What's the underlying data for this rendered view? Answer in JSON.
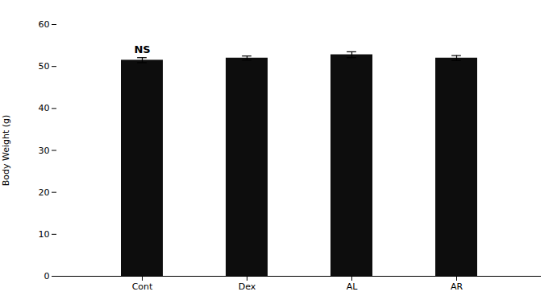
{
  "chart_data": {
    "type": "bar",
    "categories": [
      "Cont",
      "Dex",
      "AL",
      "AR"
    ],
    "values": [
      51.5,
      52.0,
      52.8,
      52.0
    ],
    "errors": [
      0.6,
      0.5,
      0.7,
      0.6
    ],
    "color": "#0d0d0d",
    "ylabel": "Body Weight (g)",
    "ylim": [
      0,
      60
    ],
    "yticks": [
      0,
      10,
      20,
      30,
      40,
      50,
      60
    ],
    "annotations": [
      {
        "text": "NS",
        "x": "Cont",
        "y": 53.2
      }
    ],
    "grid": false
  }
}
